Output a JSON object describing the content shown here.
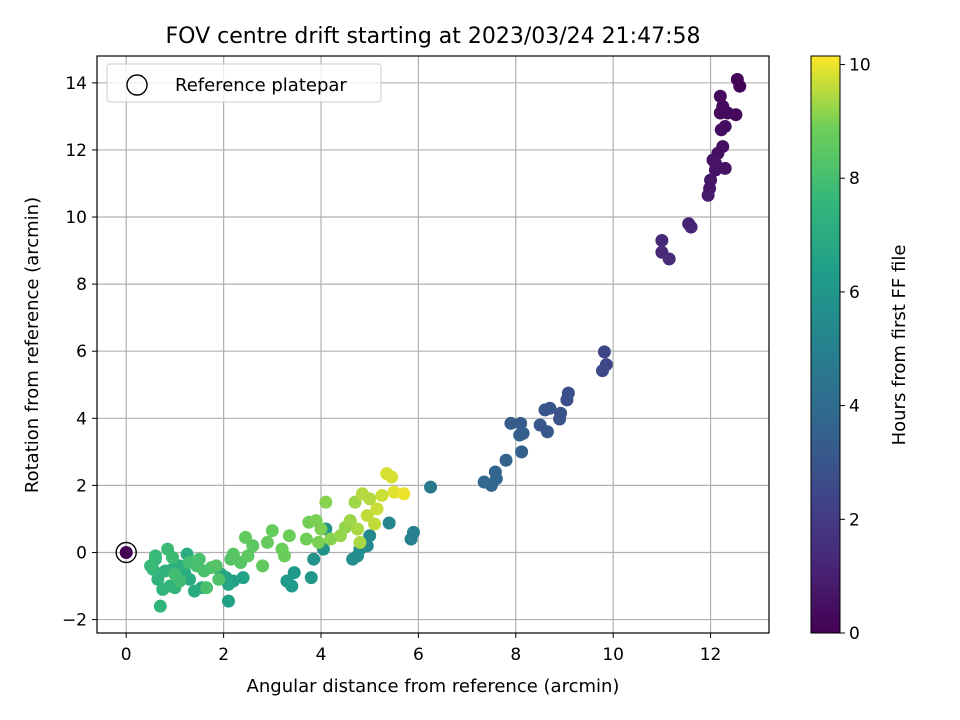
{
  "chart_data": {
    "type": "scatter",
    "title": "FOV centre drift starting at 2023/03/24 21:47:58",
    "xlabel": "Angular distance from reference (arcmin)",
    "ylabel": "Rotation from reference (arcmin)",
    "xlim": [
      -0.6,
      13.2
    ],
    "ylim": [
      -2.4,
      14.8
    ],
    "xticks": [
      0,
      2,
      4,
      6,
      8,
      10,
      12
    ],
    "yticks": [
      -2,
      0,
      2,
      4,
      6,
      8,
      10,
      12,
      14
    ],
    "grid": true,
    "legend": {
      "position": "top-left",
      "entries": [
        "Reference platepar"
      ]
    },
    "reference_point": {
      "x": 0,
      "y": 0
    },
    "colorbar": {
      "label": "Hours from first FF file",
      "min": 0,
      "max": 10.15,
      "ticks": [
        0,
        2,
        4,
        6,
        8,
        10
      ],
      "colormap": "viridis"
    },
    "series": [
      {
        "points": [
          {
            "x": 12.55,
            "y": 14.1,
            "c": 0.1
          },
          {
            "x": 12.6,
            "y": 13.9,
            "c": 0.1
          },
          {
            "x": 12.52,
            "y": 13.05,
            "c": 0.2
          },
          {
            "x": 12.2,
            "y": 13.6,
            "c": 0.3
          },
          {
            "x": 12.25,
            "y": 13.3,
            "c": 0.3
          },
          {
            "x": 12.3,
            "y": 12.7,
            "c": 0.4
          },
          {
            "x": 12.22,
            "y": 12.6,
            "c": 0.4
          },
          {
            "x": 12.25,
            "y": 12.1,
            "c": 0.5
          },
          {
            "x": 12.15,
            "y": 11.9,
            "c": 0.5
          },
          {
            "x": 12.05,
            "y": 11.7,
            "c": 0.6
          },
          {
            "x": 12.3,
            "y": 11.45,
            "c": 0.6
          },
          {
            "x": 12.1,
            "y": 11.4,
            "c": 0.6
          },
          {
            "x": 12.0,
            "y": 11.1,
            "c": 0.7
          },
          {
            "x": 11.98,
            "y": 10.85,
            "c": 0.7
          },
          {
            "x": 11.95,
            "y": 10.65,
            "c": 0.8
          },
          {
            "x": 12.2,
            "y": 13.1,
            "c": 0.3
          },
          {
            "x": 12.35,
            "y": 13.1,
            "c": 0.3
          },
          {
            "x": 12.1,
            "y": 11.6,
            "c": 0.6
          },
          {
            "x": 11.55,
            "y": 9.8,
            "c": 1.1
          },
          {
            "x": 11.6,
            "y": 9.7,
            "c": 1.1
          },
          {
            "x": 11.0,
            "y": 9.3,
            "c": 1.3
          },
          {
            "x": 11.0,
            "y": 8.95,
            "c": 1.3
          },
          {
            "x": 11.15,
            "y": 8.75,
            "c": 1.4
          },
          {
            "x": 9.82,
            "y": 5.98,
            "c": 2.4
          },
          {
            "x": 9.86,
            "y": 5.6,
            "c": 2.4
          },
          {
            "x": 9.78,
            "y": 5.42,
            "c": 2.5
          },
          {
            "x": 9.08,
            "y": 4.75,
            "c": 2.8
          },
          {
            "x": 9.05,
            "y": 4.55,
            "c": 2.8
          },
          {
            "x": 8.92,
            "y": 4.15,
            "c": 2.9
          },
          {
            "x": 8.9,
            "y": 3.98,
            "c": 2.9
          },
          {
            "x": 8.7,
            "y": 4.3,
            "c": 3.0
          },
          {
            "x": 8.6,
            "y": 4.25,
            "c": 3.0
          },
          {
            "x": 8.5,
            "y": 3.8,
            "c": 3.1
          },
          {
            "x": 8.65,
            "y": 3.6,
            "c": 3.1
          },
          {
            "x": 8.1,
            "y": 3.85,
            "c": 3.3
          },
          {
            "x": 7.9,
            "y": 3.85,
            "c": 3.3
          },
          {
            "x": 8.15,
            "y": 3.55,
            "c": 3.4
          },
          {
            "x": 8.08,
            "y": 3.5,
            "c": 3.4
          },
          {
            "x": 8.12,
            "y": 3.0,
            "c": 3.5
          },
          {
            "x": 7.8,
            "y": 2.75,
            "c": 3.6
          },
          {
            "x": 7.58,
            "y": 2.4,
            "c": 3.7
          },
          {
            "x": 7.6,
            "y": 2.2,
            "c": 3.7
          },
          {
            "x": 7.35,
            "y": 2.1,
            "c": 3.8
          },
          {
            "x": 7.5,
            "y": 2.0,
            "c": 3.8
          },
          {
            "x": 6.25,
            "y": 1.95,
            "c": 4.6
          },
          {
            "x": 5.9,
            "y": 0.6,
            "c": 5.0
          },
          {
            "x": 5.85,
            "y": 0.4,
            "c": 5.0
          },
          {
            "x": 5.4,
            "y": 0.88,
            "c": 5.2
          },
          {
            "x": 4.95,
            "y": 0.2,
            "c": 5.4
          },
          {
            "x": 5.0,
            "y": 0.5,
            "c": 5.4
          },
          {
            "x": 4.8,
            "y": 0.1,
            "c": 5.5
          },
          {
            "x": 4.75,
            "y": -0.1,
            "c": 5.6
          },
          {
            "x": 4.65,
            "y": -0.2,
            "c": 5.6
          },
          {
            "x": 4.05,
            "y": 0.1,
            "c": 5.8
          },
          {
            "x": 3.85,
            "y": -0.2,
            "c": 5.8
          },
          {
            "x": 4.1,
            "y": 0.7,
            "c": 5.9
          },
          {
            "x": 3.8,
            "y": -0.75,
            "c": 6.0
          },
          {
            "x": 3.45,
            "y": -0.6,
            "c": 6.1
          },
          {
            "x": 3.3,
            "y": -0.85,
            "c": 6.1
          },
          {
            "x": 3.4,
            "y": -1.0,
            "c": 6.2
          },
          {
            "x": 2.1,
            "y": -1.45,
            "c": 6.5
          },
          {
            "x": 2.2,
            "y": -0.85,
            "c": 6.5
          },
          {
            "x": 2.4,
            "y": -0.75,
            "c": 6.6
          },
          {
            "x": 2.05,
            "y": -0.75,
            "c": 6.6
          },
          {
            "x": 1.95,
            "y": -0.65,
            "c": 6.7
          },
          {
            "x": 2.1,
            "y": -0.95,
            "c": 6.7
          },
          {
            "x": 1.55,
            "y": -1.05,
            "c": 6.9
          },
          {
            "x": 1.4,
            "y": -1.15,
            "c": 7.0
          },
          {
            "x": 1.3,
            "y": -0.8,
            "c": 7.0
          },
          {
            "x": 1.2,
            "y": -0.6,
            "c": 7.1
          },
          {
            "x": 1.25,
            "y": -0.05,
            "c": 7.1
          },
          {
            "x": 1.1,
            "y": -0.4,
            "c": 7.2
          },
          {
            "x": 0.95,
            "y": -0.5,
            "c": 7.2
          },
          {
            "x": 0.8,
            "y": -0.55,
            "c": 7.3
          },
          {
            "x": 0.65,
            "y": -0.8,
            "c": 7.3
          },
          {
            "x": 0.7,
            "y": -1.6,
            "c": 7.4
          },
          {
            "x": 0.75,
            "y": -1.1,
            "c": 7.4
          },
          {
            "x": 0.9,
            "y": -1.0,
            "c": 7.5
          },
          {
            "x": 1.0,
            "y": -1.05,
            "c": 7.5
          },
          {
            "x": 0.55,
            "y": -0.5,
            "c": 7.6
          },
          {
            "x": 0.6,
            "y": -0.2,
            "c": 7.6
          },
          {
            "x": 0.5,
            "y": -0.4,
            "c": 7.7
          },
          {
            "x": 0.6,
            "y": -0.1,
            "c": 7.7
          },
          {
            "x": 0.85,
            "y": 0.1,
            "c": 7.8
          },
          {
            "x": 0.95,
            "y": -0.15,
            "c": 7.8
          },
          {
            "x": 1.0,
            "y": -0.65,
            "c": 7.9
          },
          {
            "x": 1.1,
            "y": -0.85,
            "c": 7.9
          },
          {
            "x": 1.3,
            "y": -0.3,
            "c": 8.0
          },
          {
            "x": 1.45,
            "y": -0.4,
            "c": 8.0
          },
          {
            "x": 1.6,
            "y": -0.55,
            "c": 8.1
          },
          {
            "x": 1.5,
            "y": -0.2,
            "c": 8.1
          },
          {
            "x": 1.65,
            "y": -1.05,
            "c": 8.1
          },
          {
            "x": 1.75,
            "y": -0.45,
            "c": 8.2
          },
          {
            "x": 1.9,
            "y": -0.8,
            "c": 8.2
          },
          {
            "x": 1.85,
            "y": -0.4,
            "c": 8.3
          },
          {
            "x": 2.15,
            "y": -0.2,
            "c": 8.3
          },
          {
            "x": 2.2,
            "y": -0.05,
            "c": 8.4
          },
          {
            "x": 2.35,
            "y": -0.3,
            "c": 8.4
          },
          {
            "x": 2.5,
            "y": -0.1,
            "c": 8.5
          },
          {
            "x": 2.6,
            "y": 0.2,
            "c": 8.5
          },
          {
            "x": 2.45,
            "y": 0.45,
            "c": 8.6
          },
          {
            "x": 2.8,
            "y": -0.4,
            "c": 8.6
          },
          {
            "x": 2.9,
            "y": 0.3,
            "c": 8.7
          },
          {
            "x": 3.0,
            "y": 0.65,
            "c": 8.7
          },
          {
            "x": 3.2,
            "y": 0.1,
            "c": 8.8
          },
          {
            "x": 3.25,
            "y": -0.1,
            "c": 8.8
          },
          {
            "x": 3.35,
            "y": 0.5,
            "c": 8.8
          },
          {
            "x": 3.7,
            "y": 0.4,
            "c": 8.9
          },
          {
            "x": 3.75,
            "y": 0.9,
            "c": 8.9
          },
          {
            "x": 3.9,
            "y": 0.95,
            "c": 9.0
          },
          {
            "x": 4.0,
            "y": 0.7,
            "c": 9.0
          },
          {
            "x": 3.95,
            "y": 0.3,
            "c": 9.0
          },
          {
            "x": 4.1,
            "y": 1.5,
            "c": 9.1
          },
          {
            "x": 4.2,
            "y": 0.4,
            "c": 9.1
          },
          {
            "x": 4.4,
            "y": 0.5,
            "c": 9.2
          },
          {
            "x": 4.5,
            "y": 0.75,
            "c": 9.2
          },
          {
            "x": 4.6,
            "y": 0.95,
            "c": 9.3
          },
          {
            "x": 4.7,
            "y": 1.5,
            "c": 9.3
          },
          {
            "x": 4.75,
            "y": 0.7,
            "c": 9.4
          },
          {
            "x": 4.8,
            "y": 0.3,
            "c": 9.4
          },
          {
            "x": 4.85,
            "y": 1.75,
            "c": 9.5
          },
          {
            "x": 5.0,
            "y": 1.6,
            "c": 9.5
          },
          {
            "x": 4.95,
            "y": 1.1,
            "c": 9.6
          },
          {
            "x": 5.1,
            "y": 0.85,
            "c": 9.6
          },
          {
            "x": 5.15,
            "y": 1.3,
            "c": 9.7
          },
          {
            "x": 5.25,
            "y": 1.7,
            "c": 9.7
          },
          {
            "x": 5.35,
            "y": 2.35,
            "c": 9.8
          },
          {
            "x": 5.45,
            "y": 2.25,
            "c": 9.8
          },
          {
            "x": 5.5,
            "y": 1.8,
            "c": 9.9
          },
          {
            "x": 5.7,
            "y": 1.75,
            "c": 10.0
          }
        ]
      }
    ]
  }
}
